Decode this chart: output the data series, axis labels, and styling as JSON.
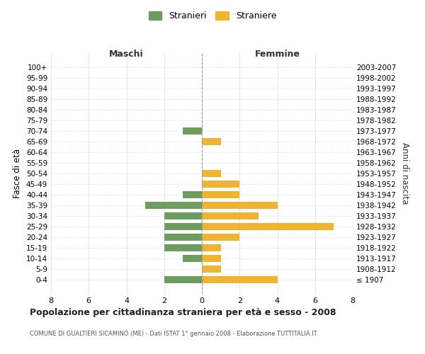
{
  "age_groups": [
    "100+",
    "95-99",
    "90-94",
    "85-89",
    "80-84",
    "75-79",
    "70-74",
    "65-69",
    "60-64",
    "55-59",
    "50-54",
    "45-49",
    "40-44",
    "35-39",
    "30-34",
    "25-29",
    "20-24",
    "15-19",
    "10-14",
    "5-9",
    "0-4"
  ],
  "birth_years": [
    "≤ 1907",
    "1908-1912",
    "1913-1917",
    "1918-1922",
    "1923-1927",
    "1928-1932",
    "1933-1937",
    "1938-1942",
    "1943-1947",
    "1948-1952",
    "1953-1957",
    "1958-1962",
    "1963-1967",
    "1968-1972",
    "1973-1977",
    "1978-1982",
    "1983-1987",
    "1988-1992",
    "1993-1997",
    "1998-2002",
    "2003-2007"
  ],
  "maschi": [
    0,
    0,
    0,
    0,
    0,
    0,
    1,
    0,
    0,
    0,
    0,
    0,
    1,
    3,
    2,
    2,
    2,
    2,
    1,
    0,
    2
  ],
  "femmine": [
    0,
    0,
    0,
    0,
    0,
    0,
    0,
    1,
    0,
    0,
    1,
    2,
    2,
    4,
    3,
    7,
    2,
    1,
    1,
    1,
    4
  ],
  "color_maschi": "#6e9b5e",
  "color_femmine": "#f0b432",
  "title": "Popolazione per cittadinanza straniera per età e sesso - 2008",
  "subtitle": "COMUNE DI GUALTIERI SICAMINÒ (ME) - Dati ISTAT 1° gennaio 2008 - Elaborazione TUTTITALIA.IT",
  "xlabel_left": "Maschi",
  "xlabel_right": "Femmine",
  "ylabel_left": "Fasce di età",
  "ylabel_right": "Anni di nascita",
  "legend_maschi": "Stranieri",
  "legend_femmine": "Straniere",
  "xlim": 8,
  "background_color": "#ffffff",
  "grid_color": "#cccccc"
}
